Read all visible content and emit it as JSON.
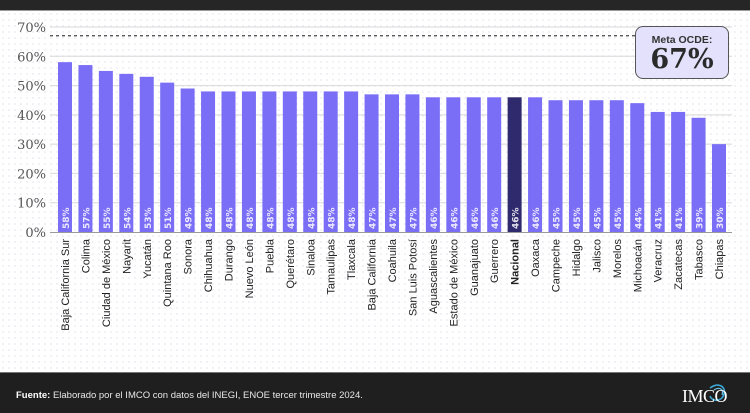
{
  "colors": {
    "bar": "#7b6ef6",
    "highlight_bar": "#2f2a6e",
    "grid": "#d8d8d8",
    "axis_text": "#555555",
    "footer_bg": "#1f1f1f"
  },
  "goal": {
    "label": "Meta OCDE:",
    "value_text": "67%",
    "value": 67
  },
  "footer": {
    "source_label": "Fuente:",
    "source_text": " Elaborado por el IMCO con datos del INEGI, ENOE tercer trimestre 2024.",
    "logo_text": "IMCO"
  },
  "chart_data": {
    "type": "bar",
    "title": "",
    "xlabel": "",
    "ylabel": "",
    "ylim": [
      0,
      70
    ],
    "yticks": [
      0,
      10,
      20,
      30,
      40,
      50,
      60,
      70
    ],
    "ytick_labels": [
      "0%",
      "10%",
      "20%",
      "30%",
      "40%",
      "50%",
      "60%",
      "70%"
    ],
    "grid": true,
    "reference_line": {
      "value": 67,
      "style": "dashed"
    },
    "highlight_category": "Nacional",
    "categories": [
      "Baja California Sur",
      "Colima",
      "Ciudad de México",
      "Nayarit",
      "Yucatán",
      "Quintana Roo",
      "Sonora",
      "Chihuahua",
      "Durango",
      "Nuevo León",
      "Puebla",
      "Querétaro",
      "Sinaloa",
      "Tamaulipas",
      "Tlaxcala",
      "Baja California",
      "Coahuila",
      "San Luis Potosí",
      "Aguascalientes",
      "Estado de México",
      "Guanajuato",
      "Guerrero",
      "Nacional",
      "Oaxaca",
      "Campeche",
      "Hidalgo",
      "Jalisco",
      "Morelos",
      "Michoacán",
      "Veracruz",
      "Zacatecas",
      "Tabasco",
      "Chiapas"
    ],
    "values": [
      58,
      57,
      55,
      54,
      53,
      51,
      49,
      48,
      48,
      48,
      48,
      48,
      48,
      48,
      48,
      47,
      47,
      47,
      46,
      46,
      46,
      46,
      46,
      46,
      45,
      45,
      45,
      45,
      44,
      41,
      41,
      39,
      30
    ],
    "value_labels": [
      "58%",
      "57%",
      "55%",
      "54%",
      "53%",
      "51%",
      "49%",
      "48%",
      "48%",
      "48%",
      "48%",
      "48%",
      "48%",
      "48%",
      "48%",
      "47%",
      "47%",
      "47%",
      "46%",
      "46%",
      "46%",
      "46%",
      "46%",
      "46%",
      "45%",
      "45%",
      "45%",
      "45%",
      "44%",
      "41%",
      "41%",
      "39%",
      "30%"
    ]
  }
}
